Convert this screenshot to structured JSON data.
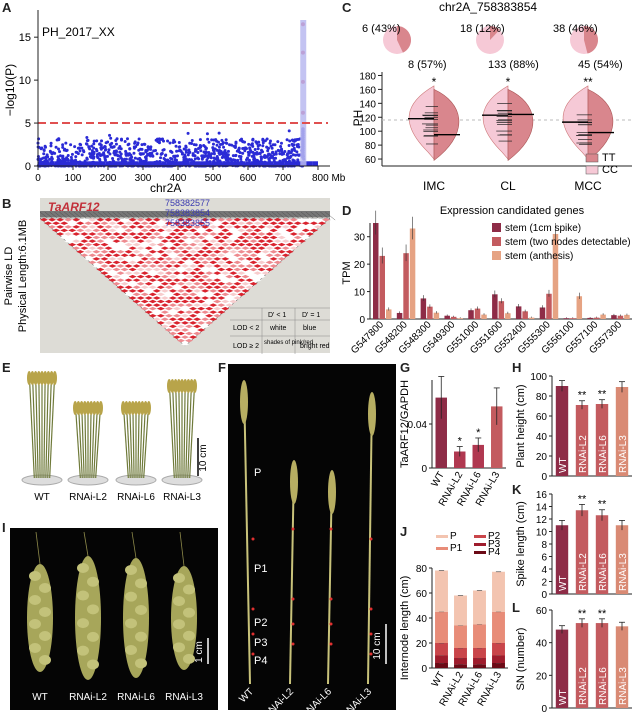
{
  "figure": {
    "panel_letters": [
      "A",
      "B",
      "C",
      "D",
      "E",
      "F",
      "G",
      "H",
      "I",
      "J",
      "K",
      "L"
    ]
  },
  "panel_a": {
    "inset_title": "PH_2017_XX",
    "ylabel": "−log10(P)",
    "xlabel": "chr2A",
    "x_unit": "Mb",
    "x_ticks": [
      "0",
      "100",
      "200",
      "300",
      "400",
      "500",
      "600",
      "700",
      "800 Mb"
    ],
    "y_ticks": [
      "0",
      "5",
      "10",
      "15"
    ],
    "threshold": 5,
    "highlight_region_mb": [
      755,
      760
    ],
    "colors": {
      "points": "#2b2bd6",
      "threshold": "#e05050",
      "highlight": "#b8b8f0",
      "peak": "#d21e4b"
    }
  },
  "panel_b": {
    "gene_label": "TaARF12",
    "markers": [
      "758382577",
      "758383854",
      "758383855"
    ],
    "ylabel_1": "Pairwise LD",
    "ylabel_2": "Physical Length:6.1MB",
    "legend": {
      "h1": "D' < 1",
      "h2": "D' = 1",
      "r1_label": "LOD < 2",
      "r1_a": "white",
      "r1_b": "blue",
      "r2_label": "LOD ≥ 2",
      "r2_a": "shades of pink/red",
      "r2_b": "bright red"
    }
  },
  "panel_c": {
    "title": "chr2A_758383854",
    "ylabel": "PH",
    "groups": [
      "IMC",
      "CL",
      "MCC"
    ],
    "y_ticks": [
      "60",
      "80",
      "100",
      "120",
      "140",
      "160",
      "180"
    ],
    "sig": [
      "*",
      "*",
      "**"
    ],
    "pie_top": [
      "6 (43%)",
      "18 (12%)",
      "38 (46%)"
    ],
    "pie_bottom": [
      "8 (57%)",
      "133 (88%)",
      "45 (54%)"
    ],
    "legend": [
      {
        "name": "TT",
        "color": "#d9868d"
      },
      {
        "name": "CC",
        "color": "#f6c9d6"
      }
    ]
  },
  "chart_data": [
    {
      "type": "bar",
      "panel": "D",
      "title": "Expression candidated genes",
      "ylabel": "TPM",
      "ylim": [
        0,
        35
      ],
      "categories": [
        "G547800",
        "G548200",
        "G548300",
        "G549300",
        "G551000",
        "G551600",
        "G552400",
        "G555300",
        "G556100",
        "G557100",
        "G557300"
      ],
      "series": [
        {
          "name": "stem (1cm spike)",
          "color": "#8e2c47",
          "values": [
            35,
            2.2,
            7.5,
            1.2,
            3.2,
            9.0,
            4.6,
            4.2,
            0.3,
            0.4,
            1.4
          ]
        },
        {
          "name": "stem (two nodes detectable)",
          "color": "#c35b5f",
          "values": [
            23,
            24,
            4.5,
            0.8,
            3.8,
            6.5,
            2.8,
            9.2,
            0.3,
            0.5,
            1.2
          ]
        },
        {
          "name": "stem (anthesis)",
          "color": "#e6a383",
          "values": [
            3.5,
            33,
            2.3,
            0.3,
            1.6,
            2.1,
            0.5,
            31,
            8.3,
            1.6,
            1.5
          ]
        }
      ]
    },
    {
      "type": "bar",
      "panel": "G",
      "ylabel": "TaARF12/GAPDH",
      "ylim": [
        0,
        0.08
      ],
      "categories": [
        "WT",
        "RNAi-L2",
        "RNAi-L6",
        "RNAi-L3"
      ],
      "values": [
        0.064,
        0.015,
        0.021,
        0.056
      ],
      "sig": [
        "",
        "*",
        "*",
        ""
      ]
    },
    {
      "type": "bar",
      "panel": "H",
      "ylabel": "Plant height (cm)",
      "ylim": [
        0,
        100
      ],
      "categories": [
        "WT",
        "RNAi-L2",
        "RNAi-L6",
        "RNAi-L3"
      ],
      "values": [
        90,
        71,
        72,
        89
      ],
      "sig": [
        "",
        "**",
        "**",
        ""
      ]
    },
    {
      "type": "bar",
      "panel": "K",
      "ylabel": "Spike length (cm)",
      "ylim": [
        0,
        16
      ],
      "categories": [
        "WT",
        "RNAi-L2",
        "RNAi-L6",
        "RNAi-L3"
      ],
      "values": [
        11.0,
        13.4,
        12.6,
        11.0
      ],
      "sig": [
        "",
        "**",
        "**",
        ""
      ]
    },
    {
      "type": "bar",
      "panel": "L",
      "ylabel": "SN (number)",
      "ylim": [
        0,
        60
      ],
      "categories": [
        "WT",
        "RNAi-L2",
        "RNAi-L6",
        "RNAi-L3"
      ],
      "values": [
        48,
        52,
        52,
        50
      ],
      "sig": [
        "",
        "**",
        "**",
        ""
      ]
    },
    {
      "type": "bar",
      "panel": "J",
      "stacked": true,
      "ylabel": "Internode length (cm)",
      "ylim": [
        0,
        80
      ],
      "categories": [
        "WT",
        "RNAi-L2",
        "RNAi-L6",
        "RNAi-L3"
      ],
      "series": [
        {
          "name": "P4",
          "color": "#6b0a16",
          "values": [
            4,
            3,
            3,
            4
          ]
        },
        {
          "name": "P3",
          "color": "#9e1c2c",
          "values": [
            6,
            5,
            5,
            6
          ]
        },
        {
          "name": "P2",
          "color": "#c9454a",
          "values": [
            10,
            8,
            8,
            10
          ]
        },
        {
          "name": "P1",
          "color": "#e88c78",
          "values": [
            25,
            18,
            19,
            25
          ]
        },
        {
          "name": "P",
          "color": "#f3c4b0",
          "values": [
            33,
            24,
            27,
            32
          ]
        }
      ]
    }
  ],
  "panel_e": {
    "labels": [
      "WT",
      "RNAi-L2",
      "RNAi-L6",
      "RNAi-L3"
    ],
    "scale": "10 cm"
  },
  "panel_f": {
    "labels": [
      "WT",
      "RNAi-L2",
      "RNAi-L6",
      "RNAi-L3"
    ],
    "internodes": [
      "P",
      "P1",
      "P2",
      "P3",
      "P4"
    ],
    "scale": "10 cm"
  },
  "panel_i": {
    "labels": [
      "WT",
      "RNAi-L2",
      "RNAi-L6",
      "RNAi-L3"
    ],
    "scale": "1 cm"
  }
}
